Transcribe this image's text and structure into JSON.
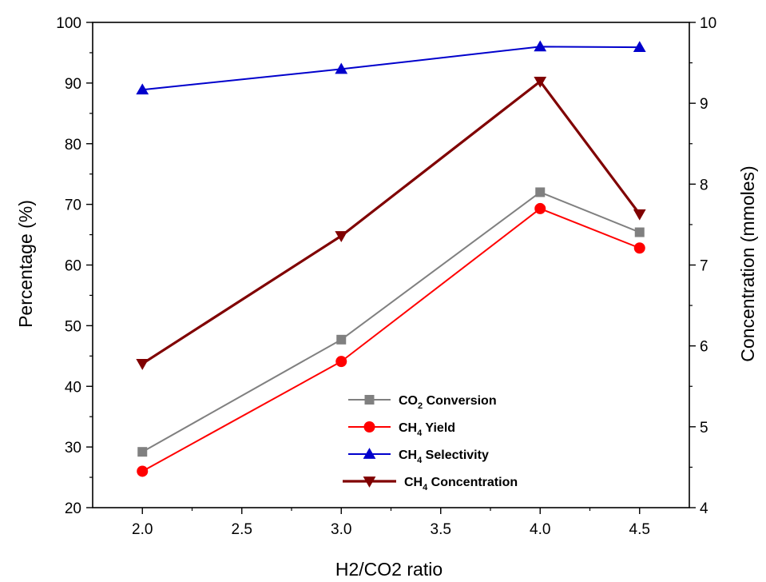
{
  "chart_data": {
    "type": "line",
    "title": "",
    "x": [
      2.0,
      3.0,
      4.0,
      4.5
    ],
    "xlabel": "H2/CO2 ratio",
    "xlim": [
      1.75,
      4.75
    ],
    "xticks": [
      2.0,
      2.5,
      3.0,
      3.5,
      4.0,
      4.5
    ],
    "xtick_labels": [
      "2.0",
      "2.5",
      "3.0",
      "3.5",
      "4.0",
      "4.5"
    ],
    "ylabel_left": "Percentage (%)",
    "ylim_left": [
      20,
      100
    ],
    "yticks_left": [
      "20",
      "30",
      "40",
      "50",
      "60",
      "70",
      "80",
      "90",
      "100"
    ],
    "ylabel_right": "Concentration (mmoles)",
    "ylim_right": [
      4,
      10
    ],
    "yticks_right": [
      "4",
      "5",
      "6",
      "7",
      "8",
      "9",
      "10"
    ],
    "grid": false,
    "legend_position": "bottom-center",
    "series": [
      {
        "name_main": "CO",
        "name_sub": "2",
        "name_rest": " Conversion",
        "axis": "left",
        "marker": "square",
        "color": "#808080",
        "values": [
          29.2,
          47.7,
          72.0,
          65.4
        ]
      },
      {
        "name_main": "CH",
        "name_sub": "4",
        "name_rest": " Yield",
        "axis": "left",
        "marker": "circle",
        "color": "#ff0000",
        "values": [
          26.0,
          44.1,
          69.3,
          62.8
        ]
      },
      {
        "name_main": "CH",
        "name_sub": "4",
        "name_rest": " Selectivity",
        "axis": "left",
        "marker": "triangle-up",
        "color": "#0000cc",
        "values": [
          88.9,
          92.3,
          96.0,
          95.9
        ]
      },
      {
        "name_main": "CH",
        "name_sub": "4",
        "name_rest": " Concentration",
        "axis": "right",
        "marker": "triangle-down",
        "color": "#800000",
        "values": [
          5.78,
          7.36,
          9.27,
          7.63
        ]
      }
    ]
  }
}
